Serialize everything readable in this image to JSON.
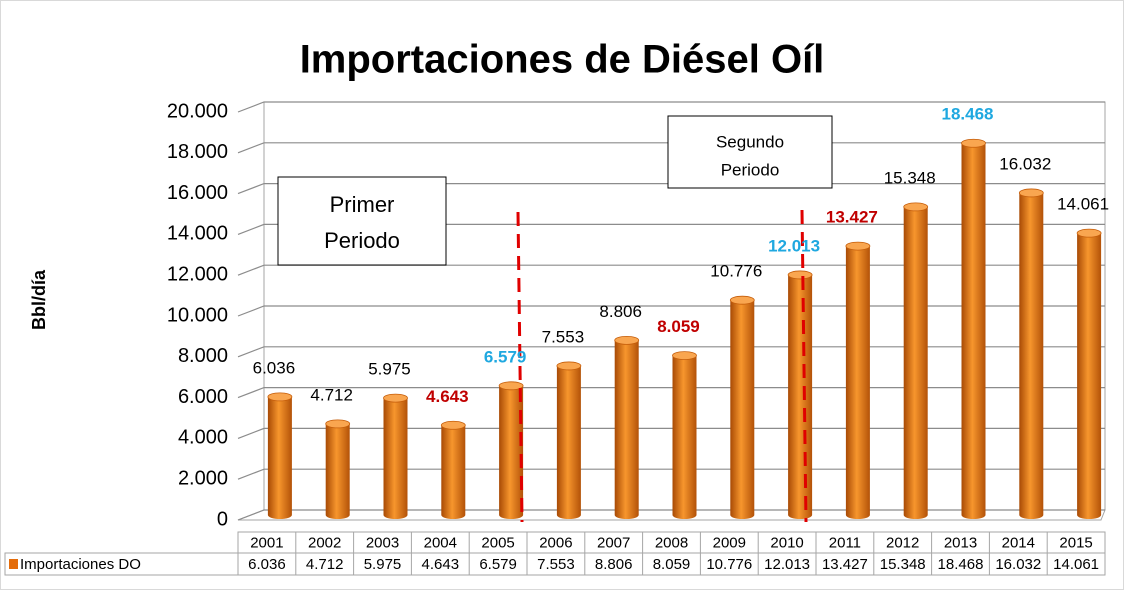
{
  "chart_data": {
    "type": "bar",
    "title": "Importaciones de Diésel Oíl",
    "y_label": "Bbl/día",
    "categories": [
      "2001",
      "2002",
      "2003",
      "2004",
      "2005",
      "2006",
      "2007",
      "2008",
      "2009",
      "2010",
      "2011",
      "2012",
      "2013",
      "2014",
      "2015"
    ],
    "series": [
      {
        "name": "Importaciones DO",
        "color": "#e46c0a",
        "values": [
          6036,
          4712,
          5975,
          4643,
          6579,
          7553,
          8806,
          8059,
          10776,
          12013,
          13427,
          15348,
          18468,
          16032,
          14061
        ],
        "value_labels": [
          "6.036",
          "4.712",
          "5.975",
          "4.643",
          "6.579",
          "7.553",
          "8.806",
          "8.059",
          "10.776",
          "12.013",
          "13.427",
          "15.348",
          "18.468",
          "16.032",
          "14.061"
        ],
        "label_colors": [
          "#000000",
          "#000000",
          "#000000",
          "#c00000",
          "#1fa8e0",
          "#000000",
          "#000000",
          "#c00000",
          "#000000",
          "#1fa8e0",
          "#c00000",
          "#000000",
          "#1fa8e0",
          "#000000",
          "#000000"
        ]
      }
    ],
    "ylim": [
      0,
      20000
    ],
    "yticks": [
      {
        "value": 0,
        "label": "0"
      },
      {
        "value": 2000,
        "label": "2.000"
      },
      {
        "value": 4000,
        "label": "4.000"
      },
      {
        "value": 6000,
        "label": "6.000"
      },
      {
        "value": 8000,
        "label": "8.000"
      },
      {
        "value": 10000,
        "label": "10.000"
      },
      {
        "value": 12000,
        "label": "12.000"
      },
      {
        "value": 14000,
        "label": "14.000"
      },
      {
        "value": 16000,
        "label": "16.000"
      },
      {
        "value": 18000,
        "label": "18.000"
      },
      {
        "value": 20000,
        "label": "20.000"
      }
    ],
    "grid": true,
    "annotations": [
      {
        "lines": [
          "Primer",
          "Periodo"
        ]
      },
      {
        "lines": [
          "Segundo",
          "Periodo"
        ]
      }
    ]
  }
}
